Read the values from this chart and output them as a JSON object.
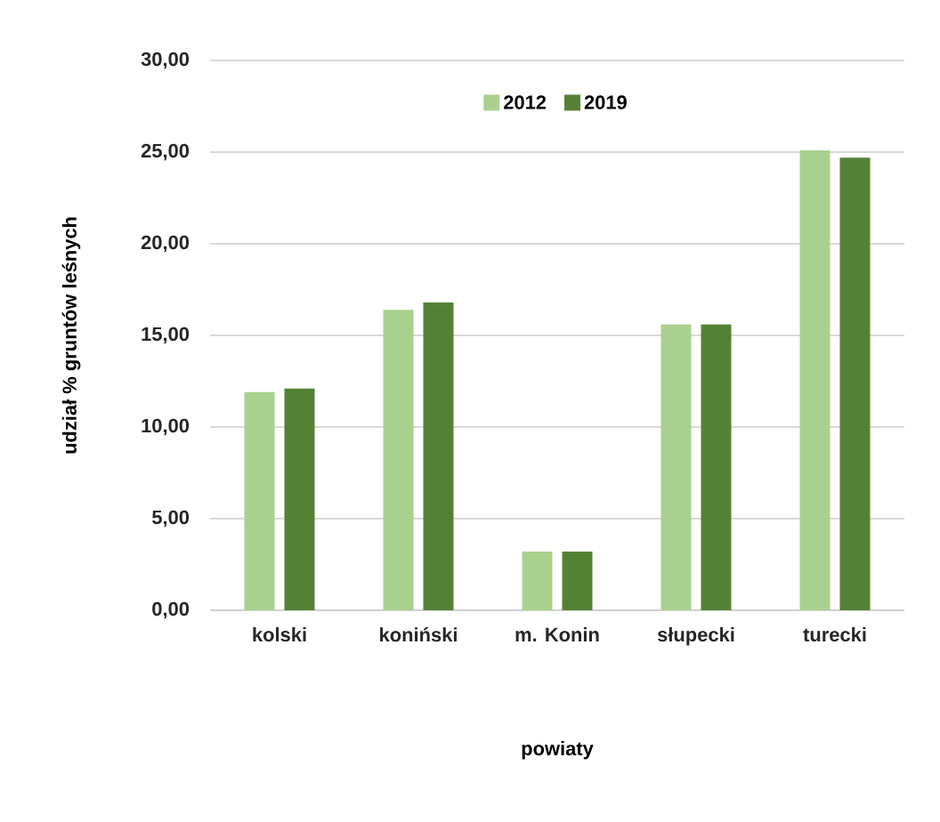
{
  "chart_data": {
    "type": "bar",
    "xlabel": "powiaty",
    "ylabel": "udział % gruntów leśnych",
    "categories": [
      "kolski",
      "koniński",
      "m. Konin",
      "słupecki",
      "turecki"
    ],
    "series": [
      {
        "name": "2012",
        "color": "#a9d18e",
        "values": [
          11.9,
          16.4,
          3.2,
          15.6,
          25.1
        ]
      },
      {
        "name": "2019",
        "color": "#548235",
        "values": [
          12.1,
          16.8,
          3.2,
          15.6,
          24.7
        ]
      }
    ],
    "ylim": [
      0,
      30
    ],
    "yticks": [
      {
        "value": 0,
        "label": "0,00"
      },
      {
        "value": 5,
        "label": "5,00"
      },
      {
        "value": 10,
        "label": "10,00"
      },
      {
        "value": 15,
        "label": "15,00"
      },
      {
        "value": 20,
        "label": "20,00"
      },
      {
        "value": 25,
        "label": "25,00"
      },
      {
        "value": 30,
        "label": "30,00"
      }
    ],
    "grid": "y",
    "legend": "top"
  }
}
